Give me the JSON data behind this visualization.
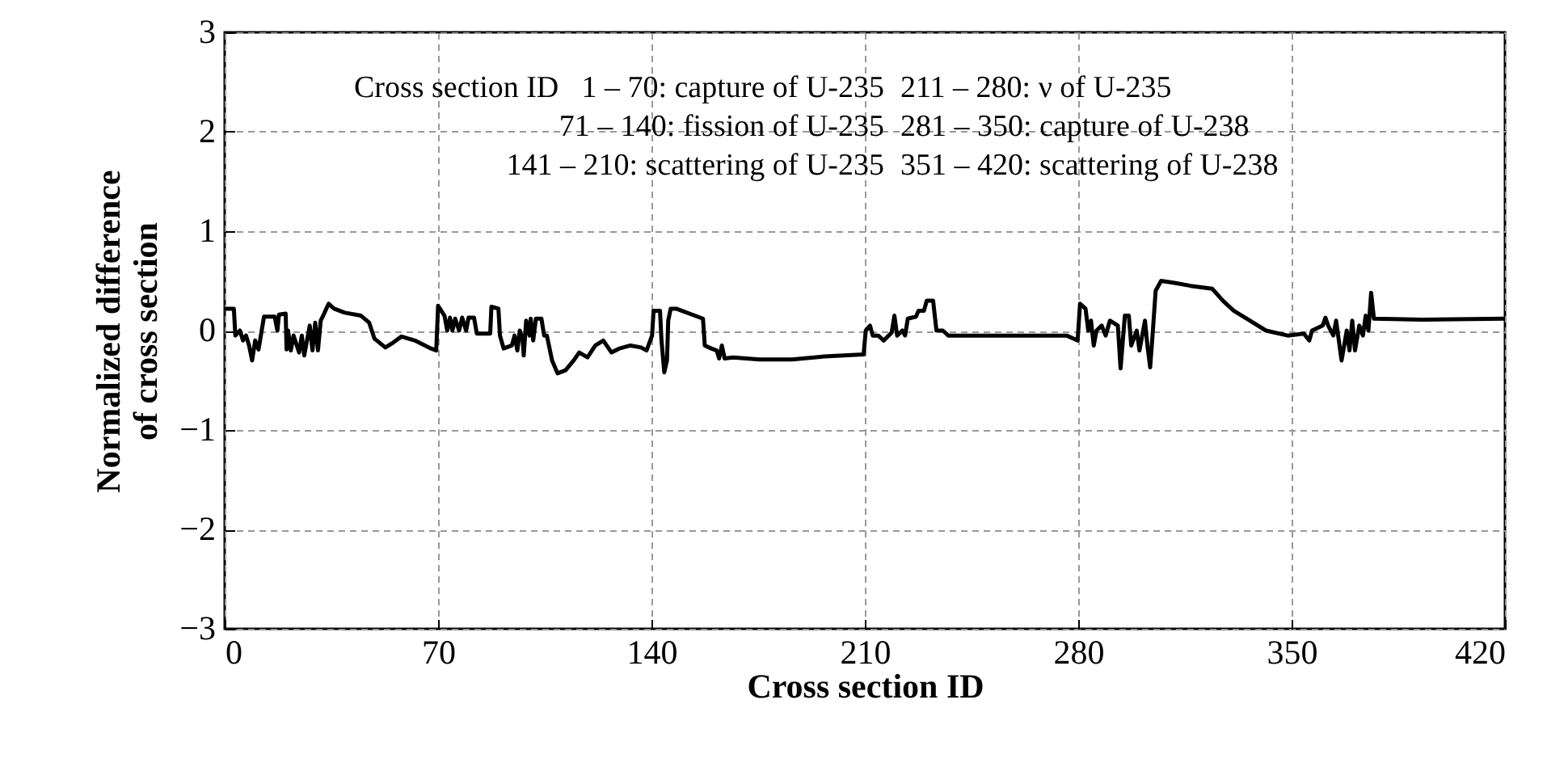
{
  "chart_data": {
    "type": "line",
    "xlabel": "Cross section ID",
    "ylabel": "Normalized difference of cross section",
    "xlim": [
      0,
      420
    ],
    "xticks": [
      0,
      70,
      140,
      210,
      280,
      350,
      420
    ],
    "ylim": [
      -3,
      3
    ],
    "yticks": [
      -3,
      -2,
      -1,
      0,
      1,
      2,
      3
    ],
    "grid": true,
    "line_style": "solid",
    "marker": "none",
    "annotations": [
      "Cross section  ID",
      "1 –  70: capture of U-235",
      "71 – 140: fission of U-235",
      "141 – 210: scattering of U-235",
      "211 – 280: ν of U-235",
      "281 – 350: capture of U-238",
      "351 – 420: scattering of U-238"
    ],
    "series": [
      {
        "color": "#000000",
        "x": [
          0,
          2,
          3,
          3.5,
          5,
          6,
          7,
          8,
          9,
          10,
          11.1,
          12.9,
          16.4,
          17.3,
          17.8,
          20.0,
          20.3,
          20.8,
          21.7,
          22.6,
          24.4,
          25.3,
          26.1,
          27.9,
          28.8,
          29.7,
          30.6,
          31.5,
          32.3,
          34.1,
          35.9,
          39.4,
          44.7,
          47.4,
          49.1,
          52.7,
          55.3,
          58.0,
          62.4,
          67.7,
          69.4,
          70.0,
          72.1,
          73.0,
          73.9,
          74.7,
          75.6,
          76.9,
          77.9,
          79.2,
          80.0,
          81.8,
          82.7,
          87.1,
          87.5,
          89.8,
          90.3,
          91.5,
          94.2,
          95.1,
          96.0,
          96.8,
          97.7,
          98.1,
          98.9,
          100.0,
          100.4,
          101.2,
          102.1,
          103.9,
          104.8,
          105.7,
          107.4,
          109.2,
          111.8,
          114.5,
          116.3,
          119.0,
          121.6,
          124.2,
          126.9,
          129.5,
          133.1,
          136.6,
          138.4,
          140.2,
          140.7,
          142.8,
          143.3,
          144.2,
          145.1,
          145.5,
          146.3,
          148.1,
          156.9,
          157.5,
          159.6,
          161.4,
          162.2,
          163.1,
          164.0,
          166.7,
          175.5,
          186.1,
          196.7,
          209.6,
          210.3,
          211.7,
          212.6,
          214.4,
          216.2,
          218.8,
          219.7,
          220.6,
          222.3,
          223.2,
          224.1,
          226.8,
          227.6,
          229.4,
          230.3,
          232.4,
          233.5,
          235.6,
          237.4,
          276.2,
          279.8,
          280.6,
          282.4,
          283.3,
          284.2,
          285.1,
          286.0,
          287.7,
          289.0,
          290.4,
          293.0,
          293.9,
          295.3,
          296.6,
          297.4,
          299.2,
          300.1,
          301.9,
          302.7,
          303.6,
          304.5,
          305.4,
          307.2,
          311.6,
          316.9,
          324.0,
          327.5,
          331.0,
          336.3,
          341.6,
          348.7,
          354.0,
          355.8,
          356.7,
          360.2,
          361.1,
          362.0,
          363.7,
          364.6,
          366.4,
          368.1,
          369.0,
          369.9,
          370.8,
          372.2,
          373.4,
          374.3,
          375.2,
          376.1,
          377.0,
          392.9,
          420
        ],
        "values": [
          0.22,
          0.22,
          0.22,
          -0.05,
          0.0,
          -0.1,
          -0.05,
          -0.15,
          -0.3,
          -0.1,
          -0.19,
          0.14,
          0.14,
          0.0,
          0.16,
          0.17,
          -0.19,
          0.0,
          -0.2,
          -0.05,
          -0.22,
          -0.05,
          -0.25,
          0.05,
          -0.2,
          0.08,
          -0.2,
          0.1,
          0.15,
          0.27,
          0.22,
          0.18,
          0.15,
          0.08,
          -0.08,
          -0.17,
          -0.12,
          -0.06,
          -0.1,
          -0.18,
          -0.2,
          0.25,
          0.15,
          0.0,
          0.13,
          0.0,
          0.12,
          0.0,
          0.13,
          0.0,
          0.13,
          0.13,
          -0.03,
          -0.03,
          0.24,
          0.22,
          -0.05,
          -0.18,
          -0.15,
          -0.05,
          -0.2,
          0.0,
          -0.08,
          -0.25,
          0.1,
          -0.05,
          0.12,
          -0.1,
          0.12,
          0.12,
          -0.05,
          -0.05,
          -0.3,
          -0.43,
          -0.4,
          -0.3,
          -0.22,
          -0.27,
          -0.15,
          -0.1,
          -0.22,
          -0.18,
          -0.15,
          -0.17,
          -0.2,
          -0.05,
          0.2,
          0.2,
          -0.1,
          -0.42,
          -0.3,
          0.1,
          0.22,
          0.22,
          0.12,
          -0.15,
          -0.18,
          -0.2,
          -0.28,
          -0.15,
          -0.28,
          -0.27,
          -0.29,
          -0.29,
          -0.26,
          -0.24,
          0.0,
          0.05,
          -0.05,
          -0.05,
          -0.1,
          -0.02,
          0.15,
          -0.05,
          0.0,
          -0.05,
          0.12,
          0.14,
          0.2,
          0.2,
          0.3,
          0.3,
          0.0,
          0.0,
          -0.05,
          -0.05,
          -0.1,
          0.27,
          0.22,
          0.0,
          0.1,
          -0.15,
          0.0,
          0.05,
          -0.05,
          0.1,
          0.05,
          -0.38,
          0.15,
          0.15,
          -0.15,
          0.0,
          -0.2,
          0.1,
          -0.15,
          -0.37,
          0.0,
          0.4,
          0.5,
          0.48,
          0.45,
          0.42,
          0.3,
          0.2,
          0.1,
          0.0,
          -0.05,
          -0.03,
          -0.1,
          0.0,
          0.05,
          0.13,
          0.05,
          -0.05,
          0.1,
          -0.3,
          0.0,
          -0.2,
          0.1,
          -0.2,
          0.05,
          -0.05,
          0.15,
          0.0,
          0.38,
          0.12,
          0.11,
          0.12
        ]
      }
    ]
  }
}
